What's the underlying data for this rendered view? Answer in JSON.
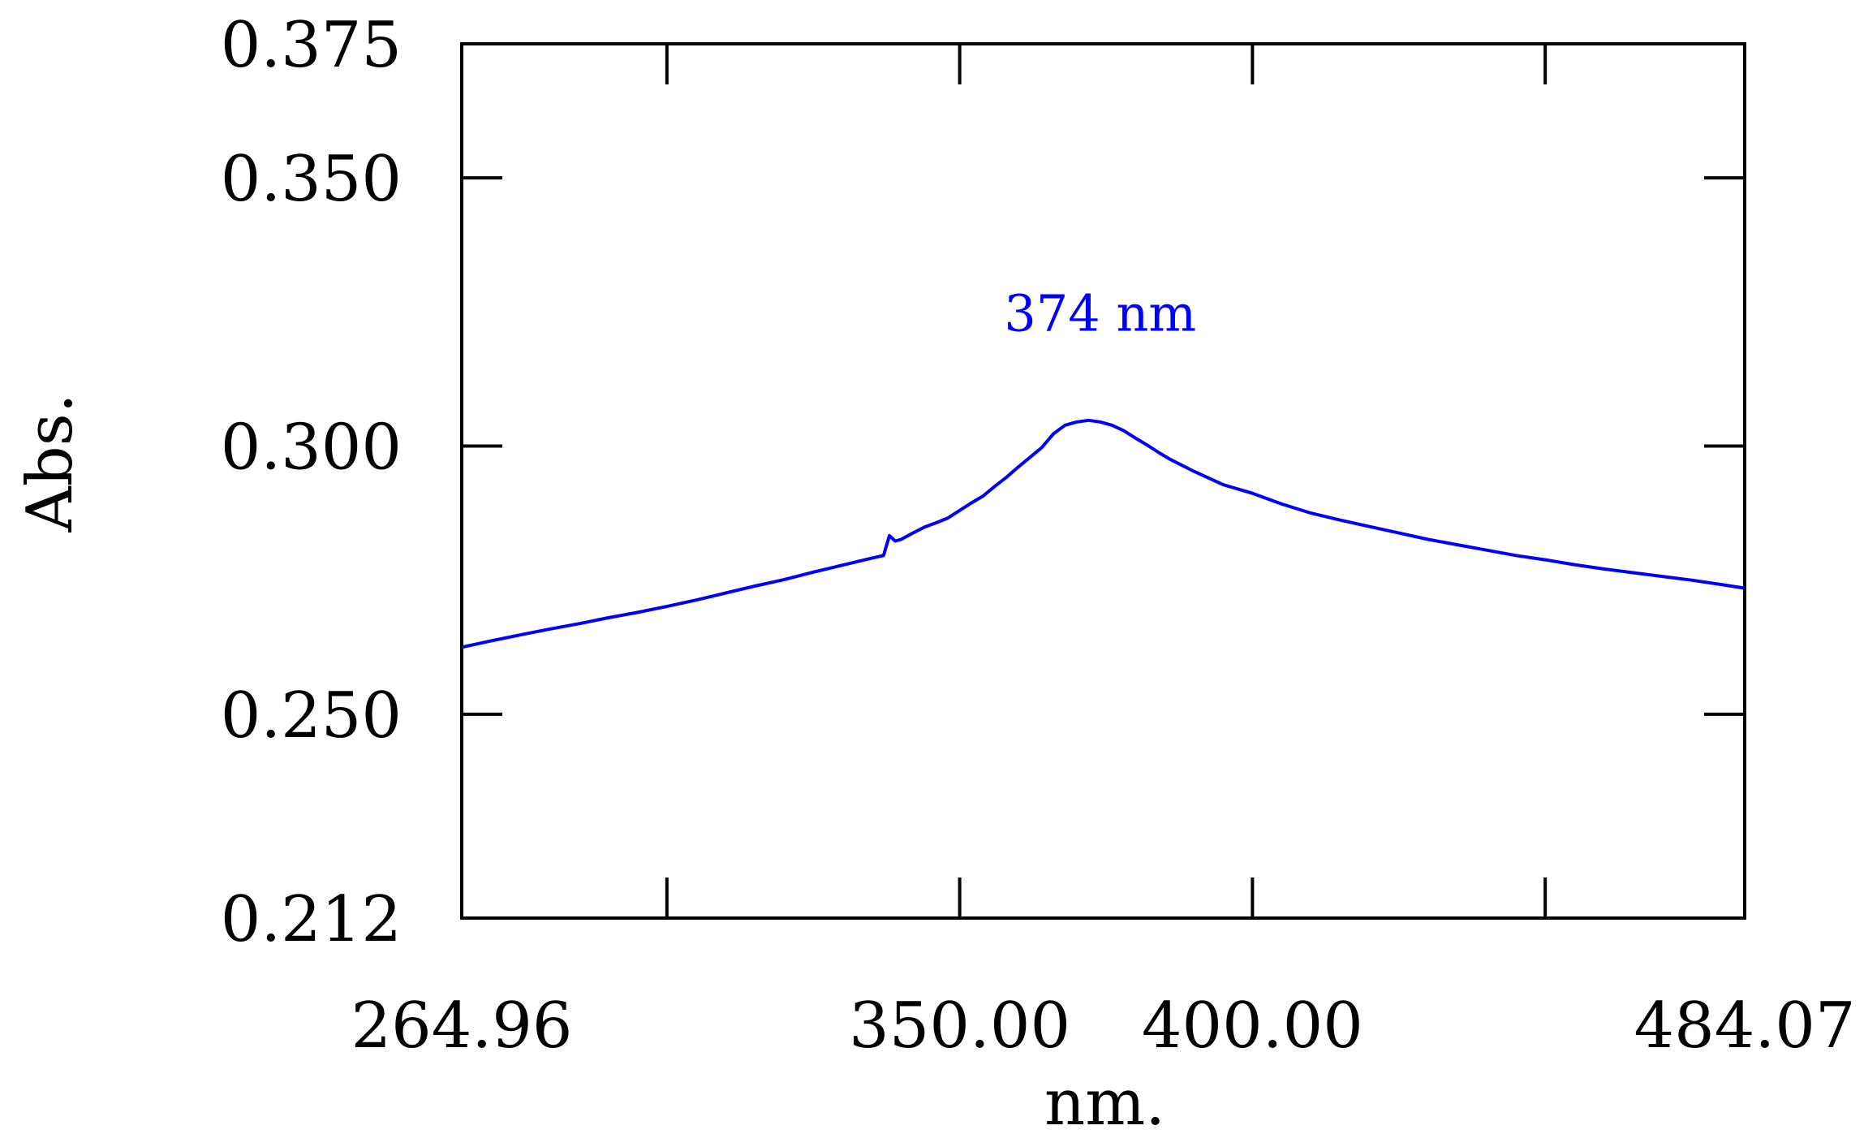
{
  "chart_data": {
    "type": "line",
    "xlabel": "nm.",
    "ylabel": "Abs.",
    "xlim": [
      264.96,
      484.07
    ],
    "ylim": [
      0.212,
      0.375
    ],
    "x_ticks": [
      {
        "value": 264.96,
        "label": "264.96"
      },
      {
        "value": 300,
        "label": ""
      },
      {
        "value": 350,
        "label": "350.00"
      },
      {
        "value": 400,
        "label": "400.00"
      },
      {
        "value": 450,
        "label": ""
      },
      {
        "value": 484.07,
        "label": "484.07"
      }
    ],
    "y_ticks": [
      {
        "value": 0.212,
        "label": "0.212"
      },
      {
        "value": 0.25,
        "label": "0.250"
      },
      {
        "value": 0.3,
        "label": "0.300"
      },
      {
        "value": 0.35,
        "label": "0.350"
      },
      {
        "value": 0.375,
        "label": "0.375"
      }
    ],
    "grid": false,
    "annotations": [
      {
        "text": "374 nm",
        "x": 374,
        "y": 0.3245,
        "color": "#0000ff"
      }
    ],
    "series": [
      {
        "color": "#0000ff",
        "x": [
          264.96,
          270,
          275,
          280,
          285,
          290,
          295,
          300,
          305,
          310,
          315,
          320,
          325,
          330,
          335,
          337,
          338,
          339,
          340,
          342,
          344,
          346,
          348,
          350,
          352,
          354,
          356,
          358,
          360,
          362,
          364,
          366,
          368,
          370,
          372,
          374,
          376,
          378,
          380,
          382,
          384,
          386,
          388,
          390,
          392,
          395,
          400,
          405,
          410,
          415,
          420,
          425,
          430,
          435,
          440,
          445,
          450,
          455,
          460,
          465,
          470,
          475,
          480,
          484.07
        ],
        "y": [
          0.2625,
          0.2637,
          0.2648,
          0.2659,
          0.2669,
          0.268,
          0.269,
          0.2701,
          0.2713,
          0.2726,
          0.2739,
          0.2751,
          0.2765,
          0.2778,
          0.2791,
          0.2796,
          0.2833,
          0.2823,
          0.2826,
          0.2838,
          0.2849,
          0.2857,
          0.2866,
          0.288,
          0.2894,
          0.2907,
          0.2925,
          0.2942,
          0.2961,
          0.2979,
          0.2997,
          0.3023,
          0.3039,
          0.3045,
          0.3048,
          0.3045,
          0.3039,
          0.3029,
          0.3015,
          0.3002,
          0.2988,
          0.2975,
          0.2964,
          0.2953,
          0.2943,
          0.2928,
          0.2912,
          0.2892,
          0.2875,
          0.2862,
          0.285,
          0.2838,
          0.2826,
          0.2816,
          0.2806,
          0.2796,
          0.2788,
          0.2779,
          0.2771,
          0.2764,
          0.2757,
          0.275,
          0.2742,
          0.2735
        ]
      }
    ]
  }
}
